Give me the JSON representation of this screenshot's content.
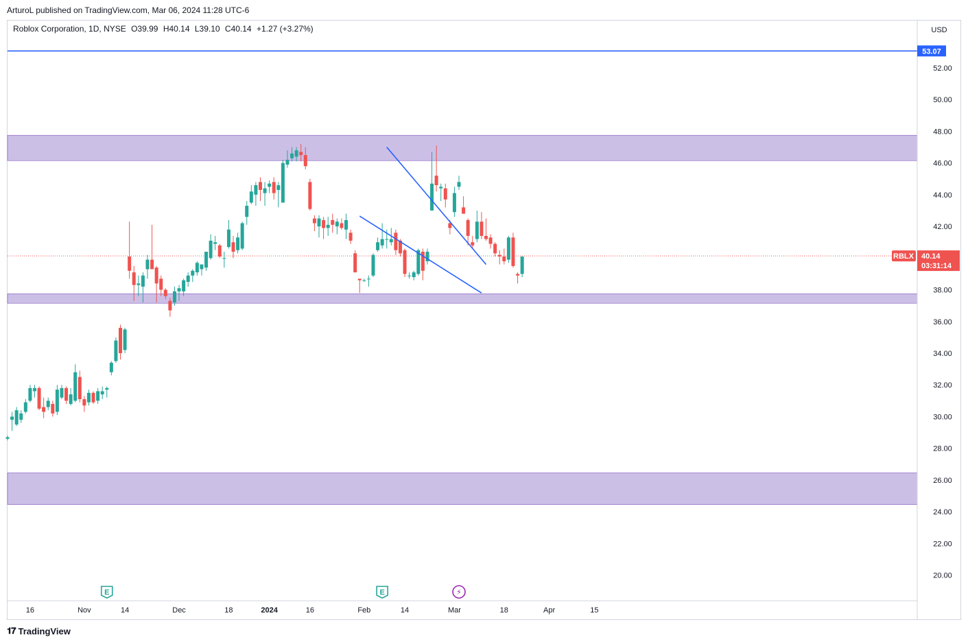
{
  "header": {
    "publisher": "ArturoL published on TradingView.com, Mar 06, 2024 11:28 UTC-6"
  },
  "legend": {
    "symbol": "Roblox Corporation, 1D, NYSE",
    "open": "O39.99",
    "high": "H40.14",
    "low": "L39.10",
    "close": "C40.14",
    "change": "+1.27 (+3.27%)"
  },
  "currency": "USD",
  "footer": {
    "brand": "TradingView",
    "logo_icon": "tradingview-logo-icon"
  },
  "colors": {
    "up": "#26a69a",
    "down": "#ef5350",
    "zone": "#c7b8e3",
    "zone_border": "#7e57c2",
    "line": "#2962ff",
    "price_line": "#ef5350",
    "grid": "#ffffff"
  },
  "badges": {
    "resistance_value": "53.07",
    "ticker": "RBLX",
    "last_price": "40.14",
    "countdown": "03:31:14"
  },
  "events": [
    {
      "icon": "earnings-icon",
      "label": "E",
      "date": "2023-11-08"
    },
    {
      "icon": "earnings-icon",
      "label": "E",
      "date": "2024-02-07"
    },
    {
      "icon": "dividend-split-icon",
      "label": "⚡",
      "date": "2024-03-04"
    }
  ],
  "chart_data": {
    "type": "candlestick",
    "ylim": [
      18.9,
      55.5
    ],
    "y_ticks": [
      "20.00",
      "22.00",
      "24.00",
      "26.00",
      "28.00",
      "30.00",
      "32.00",
      "34.00",
      "36.00",
      "38.00",
      "40.00",
      "42.00",
      "44.00",
      "46.00",
      "48.00",
      "50.00",
      "52.00"
    ],
    "x_ticks": [
      "16",
      "Nov",
      "14",
      "Dec",
      "18",
      "2024",
      "16",
      "Feb",
      "14",
      "Mar",
      "18",
      "Apr",
      "15"
    ],
    "x_ticks_bold": [
      "2024"
    ],
    "horizontal_line": 53.07,
    "last_price": 40.14,
    "zones": [
      {
        "from": 46.15,
        "to": 47.75
      },
      {
        "from": 37.15,
        "to": 37.75
      },
      {
        "from": 24.45,
        "to": 26.45
      }
    ],
    "trendlines": [
      {
        "from": [
          "2024-02-08",
          47.0
        ],
        "to": [
          "2024-03-12",
          39.6
        ]
      },
      {
        "from": [
          "2024-01-31",
          42.65
        ],
        "to": [
          "2024-03-11",
          37.8
        ]
      }
    ],
    "candles": [
      {
        "o": 28.6,
        "h": 28.8,
        "l": 28.5,
        "c": 28.7
      },
      {
        "o": 29.8,
        "h": 30.3,
        "l": 29.1,
        "c": 30.0
      },
      {
        "o": 29.5,
        "h": 30.6,
        "l": 29.4,
        "c": 30.4
      },
      {
        "o": 29.8,
        "h": 30.4,
        "l": 29.6,
        "c": 30.2
      },
      {
        "o": 30.3,
        "h": 31.1,
        "l": 30.2,
        "c": 30.9
      },
      {
        "o": 31.0,
        "h": 32.0,
        "l": 30.9,
        "c": 31.8
      },
      {
        "o": 31.6,
        "h": 32.0,
        "l": 31.2,
        "c": 31.8
      },
      {
        "o": 31.8,
        "h": 31.9,
        "l": 30.4,
        "c": 30.5
      },
      {
        "o": 30.6,
        "h": 31.2,
        "l": 29.9,
        "c": 30.3
      },
      {
        "o": 30.6,
        "h": 31.2,
        "l": 30.4,
        "c": 31.0
      },
      {
        "o": 30.8,
        "h": 31.0,
        "l": 30.0,
        "c": 30.2
      },
      {
        "o": 30.3,
        "h": 32.0,
        "l": 30.1,
        "c": 31.7
      },
      {
        "o": 31.2,
        "h": 32.0,
        "l": 31.1,
        "c": 31.8
      },
      {
        "o": 31.8,
        "h": 31.9,
        "l": 30.8,
        "c": 31.0
      },
      {
        "o": 30.8,
        "h": 31.8,
        "l": 30.7,
        "c": 31.4
      },
      {
        "o": 31.0,
        "h": 33.3,
        "l": 30.9,
        "c": 32.8
      },
      {
        "o": 32.5,
        "h": 32.9,
        "l": 30.9,
        "c": 31.1
      },
      {
        "o": 31.1,
        "h": 31.3,
        "l": 30.3,
        "c": 30.7
      },
      {
        "o": 30.9,
        "h": 31.7,
        "l": 30.7,
        "c": 31.5
      },
      {
        "o": 31.5,
        "h": 31.6,
        "l": 30.8,
        "c": 30.9
      },
      {
        "o": 31.0,
        "h": 31.8,
        "l": 30.8,
        "c": 31.6
      },
      {
        "o": 31.4,
        "h": 31.9,
        "l": 31.1,
        "c": 31.6
      },
      {
        "o": 31.7,
        "h": 31.9,
        "l": 31.2,
        "c": 31.8
      },
      {
        "o": 32.8,
        "h": 33.5,
        "l": 32.6,
        "c": 33.4
      },
      {
        "o": 33.5,
        "h": 35.0,
        "l": 33.4,
        "c": 34.8
      },
      {
        "o": 35.6,
        "h": 35.8,
        "l": 33.6,
        "c": 34.0
      },
      {
        "o": 34.2,
        "h": 35.6,
        "l": 34.0,
        "c": 35.5
      },
      {
        "o": 40.1,
        "h": 42.3,
        "l": 38.7,
        "c": 39.2
      },
      {
        "o": 39.1,
        "h": 39.5,
        "l": 37.3,
        "c": 38.3
      },
      {
        "o": 38.3,
        "h": 38.9,
        "l": 37.6,
        "c": 38.4
      },
      {
        "o": 38.2,
        "h": 39.1,
        "l": 37.2,
        "c": 38.9
      },
      {
        "o": 39.3,
        "h": 40.2,
        "l": 38.7,
        "c": 39.9
      },
      {
        "o": 39.9,
        "h": 42.1,
        "l": 39.6,
        "c": 39.3
      },
      {
        "o": 39.4,
        "h": 39.5,
        "l": 37.2,
        "c": 38.4
      },
      {
        "o": 38.7,
        "h": 38.9,
        "l": 37.6,
        "c": 38.0
      },
      {
        "o": 38.0,
        "h": 38.1,
        "l": 37.4,
        "c": 37.6
      },
      {
        "o": 37.3,
        "h": 37.5,
        "l": 36.3,
        "c": 36.7
      },
      {
        "o": 37.2,
        "h": 38.2,
        "l": 37.0,
        "c": 37.9
      },
      {
        "o": 37.9,
        "h": 38.3,
        "l": 37.3,
        "c": 38.1
      },
      {
        "o": 37.9,
        "h": 38.7,
        "l": 37.6,
        "c": 38.6
      },
      {
        "o": 38.5,
        "h": 39.1,
        "l": 38.2,
        "c": 38.9
      },
      {
        "o": 38.9,
        "h": 39.3,
        "l": 38.5,
        "c": 39.2
      },
      {
        "o": 39.1,
        "h": 39.8,
        "l": 38.9,
        "c": 39.7
      },
      {
        "o": 39.3,
        "h": 39.6,
        "l": 38.9,
        "c": 39.6
      },
      {
        "o": 39.4,
        "h": 40.4,
        "l": 39.2,
        "c": 40.4
      },
      {
        "o": 40.0,
        "h": 41.5,
        "l": 39.9,
        "c": 41.1
      },
      {
        "o": 40.9,
        "h": 41.4,
        "l": 40.5,
        "c": 41.0
      },
      {
        "o": 40.8,
        "h": 40.9,
        "l": 40.0,
        "c": 40.1
      },
      {
        "o": 40.0,
        "h": 40.4,
        "l": 39.4,
        "c": 40.0
      },
      {
        "o": 40.7,
        "h": 42.4,
        "l": 40.6,
        "c": 41.8
      },
      {
        "o": 41.0,
        "h": 41.4,
        "l": 40.0,
        "c": 40.4
      },
      {
        "o": 40.5,
        "h": 41.6,
        "l": 40.3,
        "c": 41.3
      },
      {
        "o": 40.6,
        "h": 42.3,
        "l": 40.5,
        "c": 42.2
      },
      {
        "o": 42.6,
        "h": 43.6,
        "l": 42.1,
        "c": 43.3
      },
      {
        "o": 43.5,
        "h": 44.6,
        "l": 43.4,
        "c": 44.2
      },
      {
        "o": 44.0,
        "h": 44.8,
        "l": 43.3,
        "c": 44.6
      },
      {
        "o": 44.8,
        "h": 45.1,
        "l": 43.6,
        "c": 44.3
      },
      {
        "o": 44.1,
        "h": 44.8,
        "l": 43.3,
        "c": 44.4
      },
      {
        "o": 44.5,
        "h": 44.9,
        "l": 44.1,
        "c": 44.7
      },
      {
        "o": 44.8,
        "h": 45.1,
        "l": 43.7,
        "c": 44.1
      },
      {
        "o": 44.3,
        "h": 44.8,
        "l": 43.2,
        "c": 44.6
      },
      {
        "o": 43.5,
        "h": 46.2,
        "l": 43.5,
        "c": 46.0
      },
      {
        "o": 45.9,
        "h": 46.8,
        "l": 45.7,
        "c": 46.2
      },
      {
        "o": 46.3,
        "h": 47.0,
        "l": 46.1,
        "c": 46.6
      },
      {
        "o": 46.4,
        "h": 47.0,
        "l": 46.1,
        "c": 46.8
      },
      {
        "o": 46.7,
        "h": 47.2,
        "l": 46.1,
        "c": 46.5
      },
      {
        "o": 46.5,
        "h": 47.0,
        "l": 45.6,
        "c": 45.8
      },
      {
        "o": 44.8,
        "h": 45.0,
        "l": 43.0,
        "c": 43.1
      },
      {
        "o": 42.5,
        "h": 42.7,
        "l": 41.7,
        "c": 42.2
      },
      {
        "o": 42.0,
        "h": 42.7,
        "l": 41.3,
        "c": 42.5
      },
      {
        "o": 42.4,
        "h": 42.6,
        "l": 41.2,
        "c": 41.9
      },
      {
        "o": 41.9,
        "h": 42.6,
        "l": 41.4,
        "c": 42.1
      },
      {
        "o": 42.4,
        "h": 42.8,
        "l": 41.6,
        "c": 42.1
      },
      {
        "o": 42.0,
        "h": 42.5,
        "l": 41.5,
        "c": 42.3
      },
      {
        "o": 42.2,
        "h": 42.5,
        "l": 41.8,
        "c": 41.9
      },
      {
        "o": 41.8,
        "h": 42.8,
        "l": 41.2,
        "c": 42.4
      },
      {
        "o": 41.6,
        "h": 41.8,
        "l": 40.9,
        "c": 41.1
      },
      {
        "o": 40.3,
        "h": 40.5,
        "l": 39.1,
        "c": 39.1
      },
      {
        "o": 38.7,
        "h": 38.7,
        "l": 37.8,
        "c": 38.6
      },
      {
        "o": 38.6,
        "h": 38.7,
        "l": 38.5,
        "c": 38.6
      },
      {
        "o": 38.7,
        "h": 38.9,
        "l": 38.2,
        "c": 38.7
      },
      {
        "o": 38.9,
        "h": 40.3,
        "l": 38.8,
        "c": 40.2
      },
      {
        "o": 40.5,
        "h": 41.3,
        "l": 40.4,
        "c": 41.0
      },
      {
        "o": 40.8,
        "h": 42.2,
        "l": 40.6,
        "c": 41.2
      },
      {
        "o": 41.2,
        "h": 41.8,
        "l": 40.6,
        "c": 41.2
      },
      {
        "o": 41.0,
        "h": 41.9,
        "l": 40.8,
        "c": 41.2
      },
      {
        "o": 41.6,
        "h": 41.8,
        "l": 40.2,
        "c": 40.5
      },
      {
        "o": 41.1,
        "h": 41.2,
        "l": 40.1,
        "c": 40.3
      },
      {
        "o": 40.5,
        "h": 40.6,
        "l": 38.8,
        "c": 39.0
      },
      {
        "o": 38.9,
        "h": 39.1,
        "l": 38.7,
        "c": 38.9
      },
      {
        "o": 38.8,
        "h": 39.2,
        "l": 38.6,
        "c": 39.1
      },
      {
        "o": 39.0,
        "h": 40.6,
        "l": 38.9,
        "c": 40.5
      },
      {
        "o": 40.4,
        "h": 40.6,
        "l": 38.6,
        "c": 39.2
      },
      {
        "o": 39.8,
        "h": 40.6,
        "l": 39.6,
        "c": 40.4
      },
      {
        "o": 43.0,
        "h": 46.7,
        "l": 43.0,
        "c": 44.7
      },
      {
        "o": 45.2,
        "h": 47.1,
        "l": 44.2,
        "c": 44.6
      },
      {
        "o": 44.4,
        "h": 44.7,
        "l": 43.6,
        "c": 44.5
      },
      {
        "o": 44.4,
        "h": 44.7,
        "l": 43.2,
        "c": 43.7
      },
      {
        "o": 42.2,
        "h": 42.4,
        "l": 41.5,
        "c": 41.9
      },
      {
        "o": 42.9,
        "h": 44.5,
        "l": 42.6,
        "c": 44.1
      },
      {
        "o": 44.5,
        "h": 45.2,
        "l": 44.3,
        "c": 44.8
      },
      {
        "o": 43.2,
        "h": 43.9,
        "l": 42.8,
        "c": 42.8
      },
      {
        "o": 42.4,
        "h": 42.5,
        "l": 40.8,
        "c": 41.4
      },
      {
        "o": 41.0,
        "h": 41.4,
        "l": 40.6,
        "c": 40.8
      },
      {
        "o": 41.2,
        "h": 43.0,
        "l": 41.0,
        "c": 42.3
      },
      {
        "o": 42.3,
        "h": 42.9,
        "l": 41.2,
        "c": 41.4
      },
      {
        "o": 41.4,
        "h": 42.5,
        "l": 41.1,
        "c": 41.2
      },
      {
        "o": 41.3,
        "h": 41.5,
        "l": 40.6,
        "c": 40.9
      },
      {
        "o": 40.9,
        "h": 41.0,
        "l": 40.1,
        "c": 40.3
      },
      {
        "o": 40.2,
        "h": 40.5,
        "l": 39.6,
        "c": 40.1
      },
      {
        "o": 40.1,
        "h": 40.6,
        "l": 39.6,
        "c": 39.8
      },
      {
        "o": 39.9,
        "h": 41.4,
        "l": 39.7,
        "c": 41.3
      },
      {
        "o": 41.3,
        "h": 41.6,
        "l": 39.4,
        "c": 39.5
      },
      {
        "o": 39.0,
        "h": 39.1,
        "l": 38.4,
        "c": 38.9
      },
      {
        "o": 39.0,
        "h": 40.1,
        "l": 38.8,
        "c": 40.1
      }
    ]
  }
}
